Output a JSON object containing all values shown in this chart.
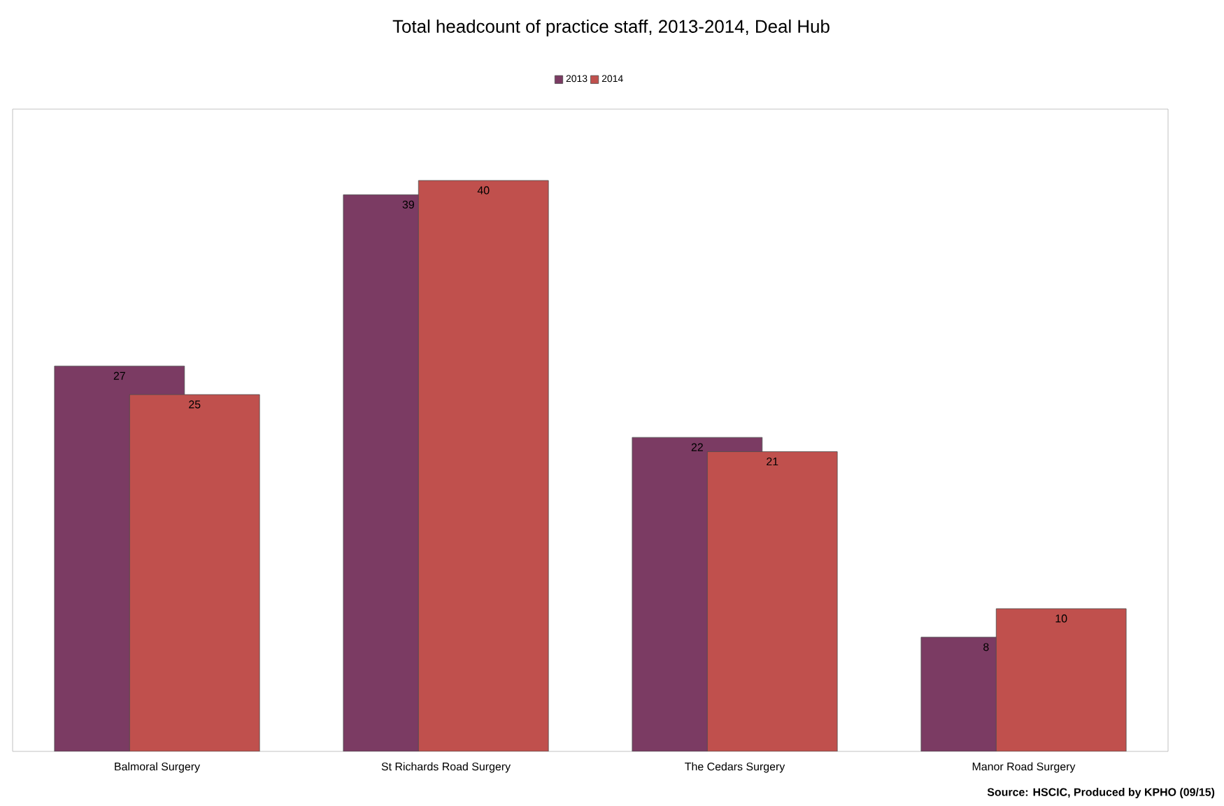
{
  "chart_data": {
    "type": "bar",
    "title": "Total headcount of practice staff, 2013-2014, Deal Hub",
    "categories": [
      "Balmoral Surgery",
      "St Richards Road Surgery",
      "The Cedars Surgery",
      "Manor Road Surgery"
    ],
    "series": [
      {
        "name": "2013",
        "color": "#7b3b63",
        "values": [
          27,
          39,
          22,
          8
        ]
      },
      {
        "name": "2014",
        "color": "#c0504d",
        "values": [
          25,
          40,
          21,
          10
        ]
      }
    ],
    "data_labels": true,
    "legend": "top",
    "grid": false,
    "annotations": [
      "Source: HSCIC, Produced by KPHO (09/15)"
    ]
  }
}
